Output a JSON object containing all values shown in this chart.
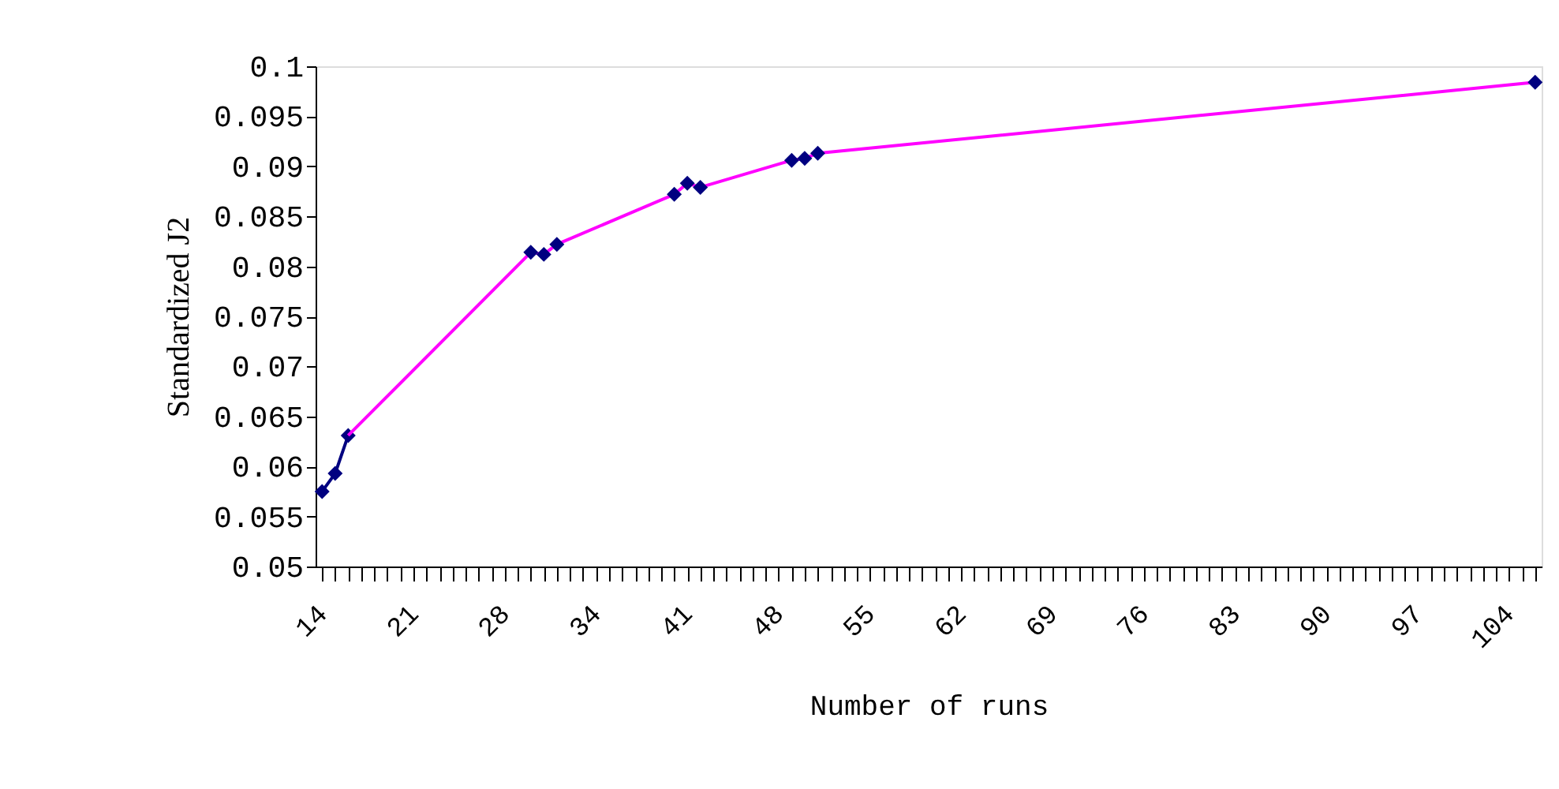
{
  "chart_data": {
    "type": "line",
    "xlabel": "Number of runs",
    "ylabel": "Standardized J2",
    "categories": [
      "14",
      null,
      null,
      null,
      null,
      null,
      null,
      "21",
      null,
      null,
      null,
      null,
      null,
      null,
      "28",
      null,
      null,
      null,
      null,
      null,
      null,
      "34",
      null,
      null,
      null,
      null,
      null,
      null,
      "41",
      null,
      null,
      null,
      null,
      null,
      null,
      "48",
      null,
      null,
      null,
      null,
      null,
      null,
      "55",
      null,
      null,
      null,
      null,
      null,
      null,
      "62",
      null,
      null,
      null,
      null,
      null,
      null,
      "69",
      null,
      null,
      null,
      null,
      null,
      null,
      "76",
      null,
      null,
      null,
      null,
      null,
      null,
      "83",
      null,
      null,
      null,
      null,
      null,
      null,
      "90",
      null,
      null,
      null,
      null,
      null,
      null,
      "97",
      null,
      null,
      null,
      null,
      null,
      null,
      "104",
      null,
      null
    ],
    "series": [
      {
        "type": "line",
        "color": "#000080",
        "marker": "diamond",
        "values": [
          0.0575,
          0.0593,
          0.0631,
          null,
          null,
          null,
          null,
          null,
          null,
          null,
          null,
          null,
          null,
          null,
          null,
          null,
          null,
          null,
          null,
          null,
          null,
          null,
          null,
          null,
          null,
          null,
          null,
          null,
          null,
          null,
          null,
          null,
          null,
          null,
          null,
          null,
          null,
          null,
          null,
          null,
          null,
          null,
          null,
          null,
          null,
          null,
          null,
          null,
          null,
          null,
          null,
          null,
          null,
          null,
          null,
          null,
          null,
          null,
          null,
          null,
          null,
          null,
          null,
          null,
          null,
          null,
          null,
          null,
          null,
          null,
          null,
          null,
          null,
          null,
          null,
          null,
          null,
          null,
          null,
          null,
          null,
          null,
          null,
          null,
          null,
          null,
          null,
          null,
          null,
          null,
          null,
          null,
          null,
          null
        ]
      },
      {
        "type": "line",
        "color": "#ff00ff",
        "marker": "none",
        "values": [
          null,
          null,
          0.0631,
          null,
          null,
          null,
          null,
          null,
          null,
          null,
          null,
          null,
          null,
          null,
          null,
          null,
          0.0814,
          0.0812,
          0.0822,
          null,
          null,
          null,
          null,
          null,
          null,
          null,
          null,
          0.0872,
          0.0883,
          0.0879,
          null,
          null,
          null,
          null,
          null,
          null,
          0.0906,
          0.0908,
          0.0913,
          null,
          null,
          null,
          null,
          null,
          null,
          null,
          null,
          null,
          null,
          null,
          null,
          null,
          null,
          null,
          null,
          null,
          null,
          null,
          null,
          null,
          null,
          null,
          null,
          null,
          null,
          null,
          null,
          null,
          null,
          null,
          null,
          null,
          null,
          null,
          null,
          null,
          null,
          null,
          null,
          null,
          null,
          null,
          null,
          null,
          null,
          null,
          null,
          null,
          null,
          null,
          null,
          null,
          null,
          0.0984
        ]
      },
      {
        "type": "scatter",
        "color": "#000080",
        "marker": "diamond",
        "values": [
          null,
          null,
          null,
          null,
          null,
          null,
          null,
          null,
          null,
          null,
          null,
          null,
          null,
          null,
          null,
          null,
          0.0814,
          0.0812,
          0.0822,
          null,
          null,
          null,
          null,
          null,
          null,
          null,
          null,
          0.0872,
          0.0883,
          0.0879,
          null,
          null,
          null,
          null,
          null,
          null,
          0.0906,
          0.0908,
          0.0913,
          null,
          null,
          null,
          null,
          null,
          null,
          null,
          null,
          null,
          null,
          null,
          null,
          null,
          null,
          null,
          null,
          null,
          null,
          null,
          null,
          null,
          null,
          null,
          null,
          null,
          null,
          null,
          null,
          null,
          null,
          null,
          null,
          null,
          null,
          null,
          null,
          null,
          null,
          null,
          null,
          null,
          null,
          null,
          null,
          null,
          null,
          null,
          null,
          null,
          null,
          null,
          null,
          null,
          null,
          0.0984
        ]
      }
    ],
    "ylim": [
      0.05,
      0.1
    ],
    "yticks": [
      0.05,
      0.055,
      0.06,
      0.065,
      0.07,
      0.075,
      0.08,
      0.085,
      0.09,
      0.095,
      0.1
    ],
    "grid": false
  }
}
